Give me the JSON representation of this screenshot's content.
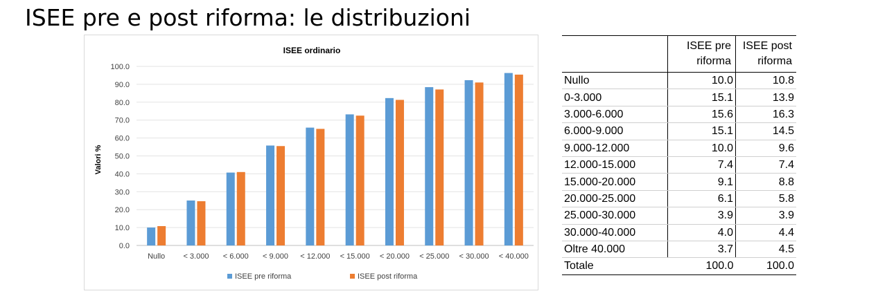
{
  "slide": {
    "title": "ISEE pre e post riforma: le distribuzioni"
  },
  "chart_data": {
    "type": "bar",
    "title": "ISEE ordinario",
    "ylabel": "Valori %",
    "xlabel": "",
    "ylim": [
      0,
      100
    ],
    "yticks": [
      "0.0",
      "10.0",
      "20.0",
      "30.0",
      "40.0",
      "50.0",
      "60.0",
      "70.0",
      "80.0",
      "90.0",
      "100.0"
    ],
    "grid": true,
    "legend_position": "bottom",
    "categories": [
      "Nullo",
      "< 3.000",
      "< 6.000",
      "< 9.000",
      "< 12.000",
      "< 15.000",
      "< 20.000",
      "< 25.000",
      "< 30.000",
      "< 40.000"
    ],
    "series": [
      {
        "name": "ISEE pre riforma",
        "color": "#5b9bd5",
        "values": [
          10.0,
          25.1,
          40.7,
          55.8,
          65.8,
          73.2,
          82.3,
          88.4,
          92.3,
          96.3
        ]
      },
      {
        "name": "ISEE post riforma",
        "color": "#ed7d31",
        "values": [
          10.8,
          24.7,
          41.0,
          55.5,
          65.1,
          72.5,
          81.3,
          87.1,
          91.0,
          95.4
        ]
      }
    ]
  },
  "table": {
    "headers": [
      "",
      "ISEE pre riforma",
      "ISEE post riforma"
    ],
    "rows": [
      [
        "Nullo",
        "10.0",
        "10.8"
      ],
      [
        "0-3.000",
        "15.1",
        "13.9"
      ],
      [
        "3.000-6.000",
        "15.6",
        "16.3"
      ],
      [
        "6.000-9.000",
        "15.1",
        "14.5"
      ],
      [
        "9.000-12.000",
        "10.0",
        "9.6"
      ],
      [
        "12.000-15.000",
        "7.4",
        "7.4"
      ],
      [
        "15.000-20.000",
        "9.1",
        "8.8"
      ],
      [
        "20.000-25.000",
        "6.1",
        "5.8"
      ],
      [
        "25.000-30.000",
        "3.9",
        "3.9"
      ],
      [
        "30.000-40.000",
        "4.0",
        "4.4"
      ],
      [
        "Oltre 40.000",
        "3.7",
        "4.5"
      ]
    ],
    "total": [
      "Totale",
      "100.0",
      "100.0"
    ]
  }
}
